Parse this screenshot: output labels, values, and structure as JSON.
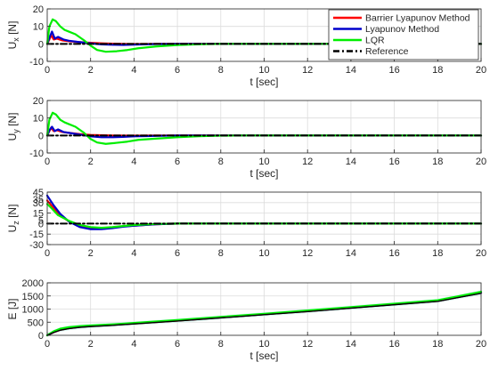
{
  "chart_data": [
    {
      "type": "line",
      "ylabel": "U_x [N]",
      "xlabel": "t [sec]",
      "xlim": [
        0,
        20
      ],
      "ylim": [
        -10,
        20
      ],
      "xticks": [
        0,
        2,
        4,
        6,
        8,
        10,
        12,
        14,
        16,
        18,
        20
      ],
      "yticks": [
        -10,
        0,
        10,
        20
      ],
      "grid": true,
      "legend": {
        "placement": "top-right",
        "entries": [
          {
            "name": "Barrier Lyapunov Method",
            "color": "#ff0000",
            "style": "solid"
          },
          {
            "name": " Lyapunov Method",
            "color": "#0000cc",
            "style": "solid"
          },
          {
            "name": "LQR",
            "color": "#00ee00",
            "style": "solid"
          },
          {
            "name": "Reference",
            "color": "#000000",
            "style": "dash-dot"
          }
        ]
      },
      "series": [
        {
          "name": "Barrier Lyapunov Method",
          "color": "#ff0000",
          "points": [
            [
              0,
              0
            ],
            [
              0.08,
              2
            ],
            [
              0.18,
              5
            ],
            [
              0.3,
              2.5
            ],
            [
              0.45,
              3
            ],
            [
              0.7,
              2
            ],
            [
              1,
              1.5
            ],
            [
              1.5,
              1
            ],
            [
              2,
              0.6
            ],
            [
              2.5,
              0.3
            ],
            [
              3,
              0.1
            ],
            [
              3.5,
              0
            ],
            [
              4,
              -0.1
            ],
            [
              5,
              0
            ],
            [
              20,
              0
            ]
          ]
        },
        {
          "name": " Lyapunov Method",
          "color": "#0000cc",
          "points": [
            [
              0,
              0
            ],
            [
              0.1,
              3.5
            ],
            [
              0.22,
              7
            ],
            [
              0.35,
              3
            ],
            [
              0.5,
              4
            ],
            [
              0.75,
              2.5
            ],
            [
              1,
              1.8
            ],
            [
              1.5,
              1
            ],
            [
              2,
              0.3
            ],
            [
              2.5,
              -0.3
            ],
            [
              3,
              -0.5
            ],
            [
              3.5,
              -0.6
            ],
            [
              4,
              -0.4
            ],
            [
              5,
              -0.1
            ],
            [
              6,
              0
            ],
            [
              20,
              0
            ]
          ]
        },
        {
          "name": "LQR",
          "color": "#00ee00",
          "points": [
            [
              0,
              0
            ],
            [
              0.1,
              10
            ],
            [
              0.25,
              14
            ],
            [
              0.4,
              13
            ],
            [
              0.6,
              10
            ],
            [
              0.8,
              8
            ],
            [
              1,
              7
            ],
            [
              1.3,
              5.5
            ],
            [
              1.7,
              2
            ],
            [
              2,
              -1
            ],
            [
              2.3,
              -3.5
            ],
            [
              2.7,
              -4.5
            ],
            [
              3.2,
              -4.2
            ],
            [
              3.7,
              -3.5
            ],
            [
              4.2,
              -2.5
            ],
            [
              5,
              -1.5
            ],
            [
              6,
              -0.7
            ],
            [
              7,
              -0.2
            ],
            [
              8,
              0
            ],
            [
              20,
              0
            ]
          ]
        },
        {
          "name": "Reference",
          "color": "#000000",
          "points": [
            [
              0,
              0
            ],
            [
              20,
              0
            ]
          ]
        }
      ]
    },
    {
      "type": "line",
      "ylabel": "U_y [N]",
      "xlabel": "t [sec]",
      "xlim": [
        0,
        20
      ],
      "ylim": [
        -10,
        20
      ],
      "xticks": [
        0,
        2,
        4,
        6,
        8,
        10,
        12,
        14,
        16,
        18,
        20
      ],
      "yticks": [
        -10,
        0,
        10,
        20
      ],
      "grid": true,
      "series": [
        {
          "name": "Barrier Lyapunov Method",
          "color": "#ff0000",
          "points": [
            [
              0,
              0
            ],
            [
              0.08,
              2
            ],
            [
              0.18,
              4.5
            ],
            [
              0.3,
              2.5
            ],
            [
              0.45,
              3
            ],
            [
              0.7,
              2
            ],
            [
              1,
              1.5
            ],
            [
              1.5,
              0.8
            ],
            [
              2,
              0.3
            ],
            [
              3,
              0
            ],
            [
              4,
              -0.1
            ],
            [
              5,
              0
            ],
            [
              20,
              0
            ]
          ]
        },
        {
          "name": " Lyapunov Method",
          "color": "#0000cc",
          "points": [
            [
              0,
              0
            ],
            [
              0.1,
              3
            ],
            [
              0.22,
              5
            ],
            [
              0.35,
              2.5
            ],
            [
              0.5,
              3.5
            ],
            [
              0.75,
              2
            ],
            [
              1,
              1.5
            ],
            [
              1.5,
              0.5
            ],
            [
              2,
              -0.5
            ],
            [
              2.5,
              -1
            ],
            [
              3,
              -1
            ],
            [
              3.5,
              -0.8
            ],
            [
              4,
              -0.5
            ],
            [
              5,
              -0.2
            ],
            [
              6,
              0
            ],
            [
              20,
              0
            ]
          ]
        },
        {
          "name": "LQR",
          "color": "#00ee00",
          "points": [
            [
              0,
              0
            ],
            [
              0.1,
              9
            ],
            [
              0.25,
              13
            ],
            [
              0.4,
              12
            ],
            [
              0.6,
              9
            ],
            [
              0.8,
              7.5
            ],
            [
              1,
              6.5
            ],
            [
              1.3,
              5
            ],
            [
              1.7,
              1.5
            ],
            [
              2,
              -2
            ],
            [
              2.3,
              -4
            ],
            [
              2.7,
              -4.8
            ],
            [
              3.2,
              -4.2
            ],
            [
              3.7,
              -3.5
            ],
            [
              4.2,
              -2.5
            ],
            [
              5,
              -1.8
            ],
            [
              6,
              -1
            ],
            [
              7,
              -0.4
            ],
            [
              8,
              -0.1
            ],
            [
              9,
              0
            ],
            [
              20,
              0
            ]
          ]
        },
        {
          "name": "Reference",
          "color": "#000000",
          "points": [
            [
              0,
              0
            ],
            [
              20,
              0
            ]
          ]
        }
      ]
    },
    {
      "type": "line",
      "ylabel": "U_z [N]",
      "xlabel": "",
      "xlim": [
        0,
        20
      ],
      "ylim": [
        -30,
        45
      ],
      "xticks": [
        0,
        2,
        4,
        6,
        8,
        10,
        12,
        14,
        16,
        18,
        20
      ],
      "yticks": [
        -30,
        -15,
        0,
        15,
        30,
        45
      ],
      "extra_ylabels": [
        "35",
        "5"
      ],
      "grid": true,
      "series": [
        {
          "name": "Barrier Lyapunov Method",
          "color": "#ff0000",
          "points": [
            [
              0,
              33
            ],
            [
              0.3,
              22
            ],
            [
              0.6,
              12
            ],
            [
              1,
              3
            ],
            [
              1.5,
              -4
            ],
            [
              2,
              -7
            ],
            [
              2.5,
              -7
            ],
            [
              3,
              -6
            ],
            [
              3.5,
              -4
            ],
            [
              4,
              -3
            ],
            [
              5,
              -1
            ],
            [
              6,
              0
            ],
            [
              20,
              0
            ]
          ]
        },
        {
          "name": " Lyapunov Method",
          "color": "#0000cc",
          "points": [
            [
              0,
              40
            ],
            [
              0.3,
              26
            ],
            [
              0.6,
              14
            ],
            [
              1,
              3
            ],
            [
              1.5,
              -5
            ],
            [
              2,
              -8
            ],
            [
              2.5,
              -8
            ],
            [
              3,
              -6.5
            ],
            [
              3.5,
              -4.5
            ],
            [
              4,
              -3
            ],
            [
              5,
              -1
            ],
            [
              6,
              0
            ],
            [
              20,
              0
            ]
          ]
        },
        {
          "name": "LQR",
          "color": "#00ee00",
          "points": [
            [
              0,
              28
            ],
            [
              0.2,
              22
            ],
            [
              0.5,
              12
            ],
            [
              1,
              4
            ],
            [
              1.5,
              -2
            ],
            [
              2,
              -5
            ],
            [
              2.5,
              -6
            ],
            [
              3,
              -5
            ],
            [
              3.5,
              -3.5
            ],
            [
              4,
              -2
            ],
            [
              5,
              -0.5
            ],
            [
              6,
              0
            ],
            [
              20,
              0
            ]
          ]
        },
        {
          "name": "Reference",
          "color": "#000000",
          "points": [
            [
              0,
              0
            ],
            [
              20,
              0
            ]
          ]
        }
      ]
    },
    {
      "type": "line",
      "ylabel": "E [J]",
      "xlabel": "t [sec]",
      "xlim": [
        0,
        20
      ],
      "ylim": [
        0,
        2000
      ],
      "xticks": [
        0,
        2,
        4,
        6,
        8,
        10,
        12,
        14,
        16,
        18,
        20
      ],
      "yticks": [
        0,
        500,
        1000,
        1500,
        2000
      ],
      "grid": true,
      "series": [
        {
          "name": "Barrier Lyapunov Method",
          "color": "#ff0000",
          "points": [
            [
              0,
              0
            ],
            [
              0.3,
              120
            ],
            [
              0.6,
              210
            ],
            [
              1,
              270
            ],
            [
              1.5,
              320
            ],
            [
              2,
              350
            ],
            [
              3,
              395
            ],
            [
              4,
              450
            ],
            [
              6,
              560
            ],
            [
              8,
              680
            ],
            [
              10,
              800
            ],
            [
              12,
              920
            ],
            [
              14,
              1050
            ],
            [
              16,
              1180
            ],
            [
              18,
              1310
            ],
            [
              20,
              1620
            ]
          ]
        },
        {
          "name": " Lyapunov Method",
          "color": "#0000cc",
          "points": [
            [
              0,
              0
            ],
            [
              0.3,
              130
            ],
            [
              0.6,
              220
            ],
            [
              1,
              280
            ],
            [
              1.5,
              325
            ],
            [
              2,
              355
            ],
            [
              3,
              400
            ],
            [
              4,
              455
            ],
            [
              6,
              565
            ],
            [
              8,
              685
            ],
            [
              10,
              805
            ],
            [
              12,
              925
            ],
            [
              14,
              1055
            ],
            [
              16,
              1185
            ],
            [
              18,
              1315
            ],
            [
              20,
              1625
            ]
          ]
        },
        {
          "name": "LQR",
          "color": "#00ee00",
          "points": [
            [
              0,
              0
            ],
            [
              0.3,
              150
            ],
            [
              0.6,
              250
            ],
            [
              1,
              310
            ],
            [
              1.5,
              350
            ],
            [
              2,
              375
            ],
            [
              3,
              415
            ],
            [
              4,
              470
            ],
            [
              6,
              580
            ],
            [
              8,
              700
            ],
            [
              10,
              820
            ],
            [
              12,
              945
            ],
            [
              14,
              1075
            ],
            [
              16,
              1205
            ],
            [
              18,
              1335
            ],
            [
              20,
              1660
            ]
          ]
        },
        {
          "name": "Reference",
          "color": "#000000",
          "points": [
            [
              0,
              0
            ],
            [
              0.3,
              110
            ],
            [
              0.6,
              195
            ],
            [
              1,
              255
            ],
            [
              1.5,
              305
            ],
            [
              2,
              335
            ],
            [
              3,
              380
            ],
            [
              4,
              435
            ],
            [
              6,
              545
            ],
            [
              8,
              665
            ],
            [
              10,
              785
            ],
            [
              12,
              905
            ],
            [
              14,
              1035
            ],
            [
              16,
              1165
            ],
            [
              18,
              1295
            ],
            [
              20,
              1600
            ]
          ]
        }
      ]
    }
  ]
}
